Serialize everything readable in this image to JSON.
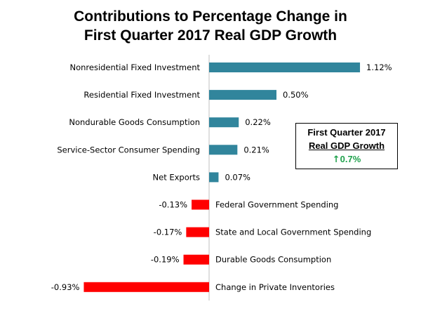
{
  "chart_data": {
    "type": "bar",
    "orientation": "horizontal",
    "title_line1": "Contributions  to Percentage Change in",
    "title_line2": "First Quarter 2017 Real GDP Growth",
    "categories": [
      "Nonresidential Fixed Investment",
      "Residential Fixed Investment",
      "Nondurable Goods Consumption",
      "Service-Sector Consumer Spending",
      "Net Exports",
      "Federal Government  Spending",
      "State and Local Government  Spending",
      "Durable Goods Consumption",
      "Change in Private Inventories"
    ],
    "values": [
      1.12,
      0.5,
      0.22,
      0.21,
      0.07,
      -0.13,
      -0.17,
      -0.19,
      -0.93
    ],
    "value_labels": [
      "1.12%",
      "0.50%",
      "0.22%",
      "0.21%",
      "0.07%",
      "-0.13%",
      "-0.17%",
      "-0.19%",
      "-0.93%"
    ],
    "positive_color": "#31859c",
    "negative_color": "#ff0000",
    "xlim": [
      -1.3,
      1.4
    ]
  },
  "summary_box": {
    "line1": "First Quarter 2017",
    "line2": "Real GDP Growth",
    "arrow_icon": "up-arrow-icon",
    "growth_value": "0.7%",
    "growth_color": "#1fa14c"
  }
}
